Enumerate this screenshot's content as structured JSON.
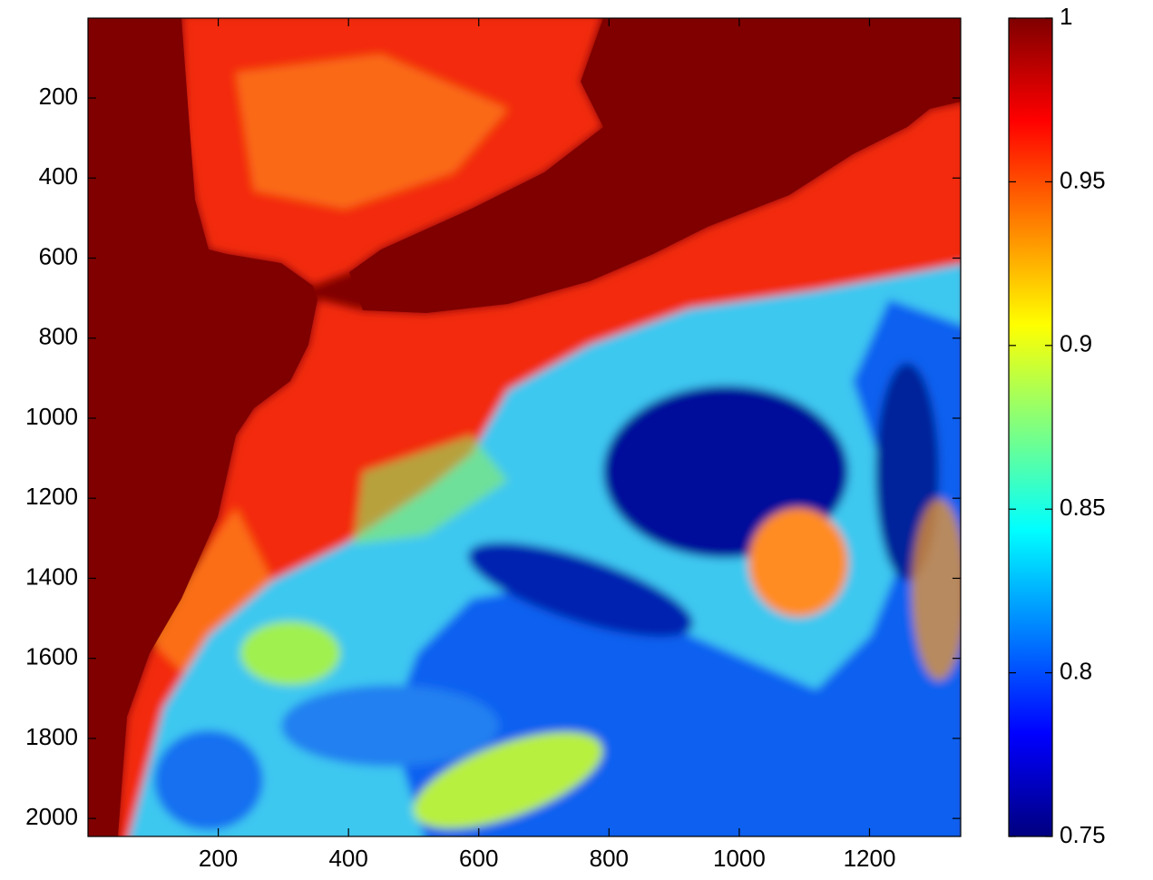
{
  "chart_data": {
    "type": "image",
    "colormap": "jet",
    "xlim": [
      0,
      1340
    ],
    "xticks": [
      200,
      400,
      600,
      800,
      1000,
      1200
    ],
    "ylim": [
      0.5,
      2045
    ],
    "yticks": [
      200,
      400,
      600,
      800,
      1000,
      1200,
      1400,
      1600,
      1800,
      2000
    ],
    "y_reversed": true,
    "colorbar": {
      "clim": [
        0.75,
        1
      ],
      "ticks": [
        0.75,
        0.8,
        0.85,
        0.9,
        0.95,
        1
      ]
    }
  }
}
